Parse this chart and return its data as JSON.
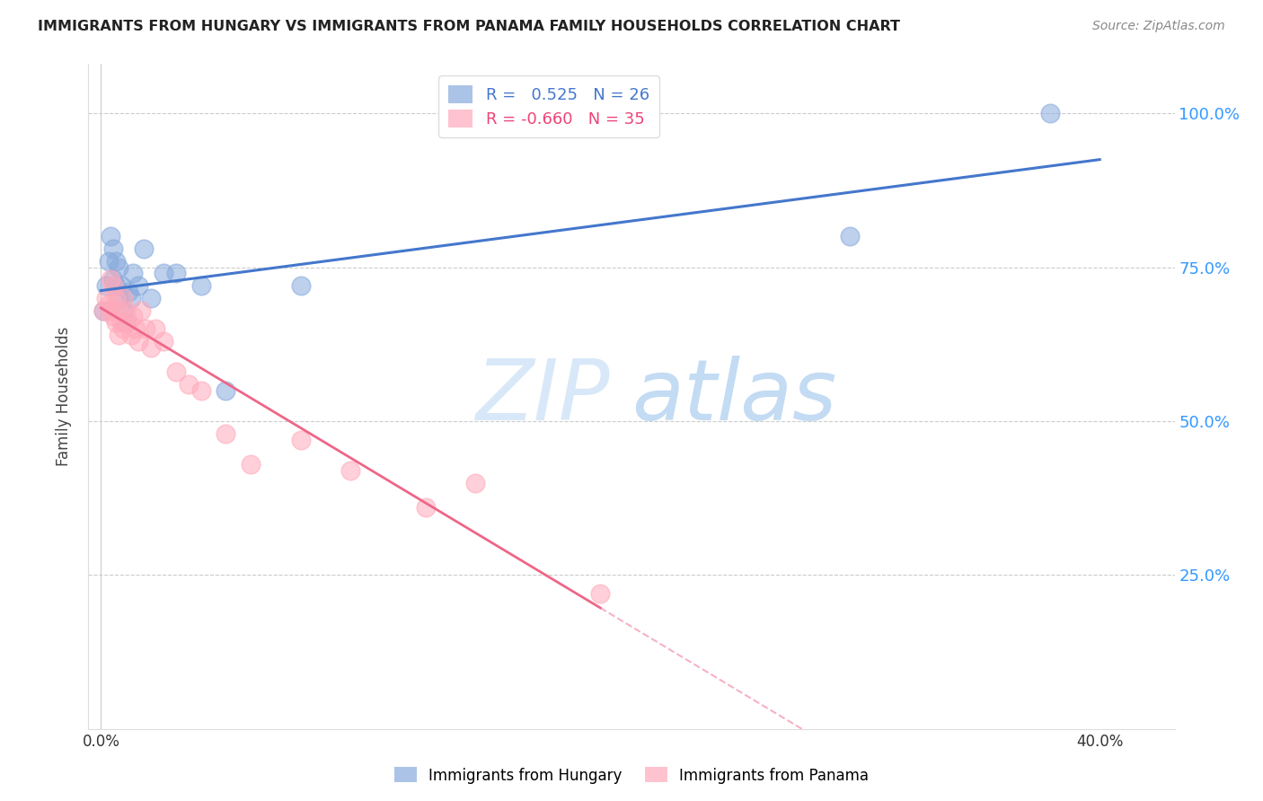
{
  "title": "IMMIGRANTS FROM HUNGARY VS IMMIGRANTS FROM PANAMA FAMILY HOUSEHOLDS CORRELATION CHART",
  "source": "Source: ZipAtlas.com",
  "ylabel": "Family Households",
  "hungary_color": "#88aadd",
  "panama_color": "#ffaabb",
  "hungary_line_color": "#4477cc",
  "panama_line_color": "#ee6688",
  "watermark_zip": "ZIP",
  "watermark_atlas": "atlas",
  "background_color": "#ffffff",
  "hungary_x": [
    0.001,
    0.002,
    0.003,
    0.004,
    0.005,
    0.005,
    0.006,
    0.006,
    0.007,
    0.007,
    0.008,
    0.009,
    0.01,
    0.011,
    0.012,
    0.013,
    0.015,
    0.017,
    0.02,
    0.025,
    0.03,
    0.04,
    0.05,
    0.08,
    0.3,
    0.38
  ],
  "hungary_y": [
    0.68,
    0.72,
    0.76,
    0.8,
    0.73,
    0.78,
    0.76,
    0.72,
    0.75,
    0.7,
    0.72,
    0.68,
    0.66,
    0.71,
    0.7,
    0.74,
    0.72,
    0.78,
    0.7,
    0.74,
    0.74,
    0.72,
    0.55,
    0.72,
    0.8,
    1.0
  ],
  "panama_x": [
    0.001,
    0.002,
    0.003,
    0.004,
    0.004,
    0.005,
    0.005,
    0.006,
    0.006,
    0.007,
    0.007,
    0.008,
    0.009,
    0.009,
    0.01,
    0.011,
    0.012,
    0.013,
    0.014,
    0.015,
    0.016,
    0.018,
    0.02,
    0.022,
    0.025,
    0.03,
    0.035,
    0.04,
    0.05,
    0.06,
    0.08,
    0.1,
    0.13,
    0.15,
    0.2
  ],
  "panama_y": [
    0.68,
    0.7,
    0.69,
    0.73,
    0.68,
    0.72,
    0.67,
    0.7,
    0.66,
    0.68,
    0.64,
    0.66,
    0.65,
    0.7,
    0.68,
    0.66,
    0.64,
    0.67,
    0.65,
    0.63,
    0.68,
    0.65,
    0.62,
    0.65,
    0.63,
    0.58,
    0.56,
    0.55,
    0.48,
    0.43,
    0.47,
    0.42,
    0.36,
    0.4,
    0.22
  ],
  "xlim_data": 0.2,
  "xlim_display": 0.42,
  "ylim": [
    0.0,
    1.08
  ],
  "yticks": [
    0.25,
    0.5,
    0.75,
    1.0
  ],
  "ytick_labels": [
    "25.0%",
    "50.0%",
    "75.0%",
    "100.0%"
  ],
  "xtick_positions": [
    0.0,
    0.1,
    0.2,
    0.3,
    0.4
  ],
  "xtick_labels": [
    "0.0%",
    "",
    "",
    "",
    "40.0%"
  ]
}
